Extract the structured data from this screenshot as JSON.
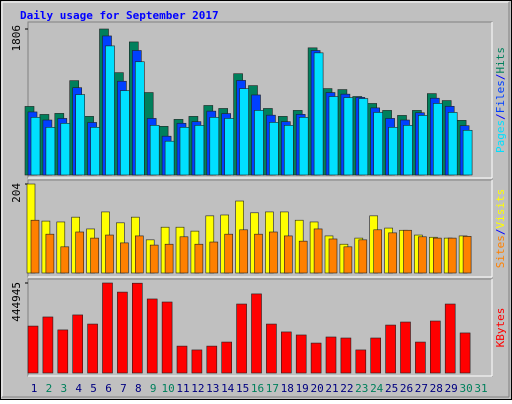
{
  "chart_data": {
    "type": "bar",
    "title": "Daily usage for September 2017",
    "categories": [
      "1",
      "2",
      "3",
      "4",
      "5",
      "6",
      "7",
      "8",
      "9",
      "10",
      "11",
      "12",
      "13",
      "14",
      "15",
      "16",
      "17",
      "18",
      "19",
      "20",
      "21",
      "22",
      "23",
      "24",
      "25",
      "26",
      "27",
      "28",
      "29",
      "30",
      "31"
    ],
    "weekend": [
      false,
      true,
      true,
      false,
      false,
      false,
      false,
      false,
      true,
      true,
      false,
      false,
      false,
      false,
      false,
      true,
      true,
      false,
      false,
      false,
      false,
      false,
      true,
      true,
      false,
      false,
      false,
      false,
      false,
      true,
      true
    ],
    "weekday_label_color": "#000080",
    "weekend_label_color": "#00805c",
    "legend_separator": "/",
    "panels": [
      {
        "ylim": [
          0,
          1806
        ],
        "yticks": [
          1806
        ],
        "series": [
          {
            "name": "Hits",
            "color": "#00805c",
            "values": [
              848,
              749,
              762,
              1167,
              725,
              1806,
              1266,
              1646,
              1020,
              602,
              688,
              725,
              860,
              823,
              1253,
              1106,
              823,
              725,
              799,
              1573,
              1069,
              1057,
              971,
              885,
              799,
              737,
              799,
              1007,
              921,
              676,
              null
            ]
          },
          {
            "name": "Files",
            "color": "#0040ff",
            "values": [
              780,
              680,
              700,
              1080,
              650,
              1720,
              1160,
              1540,
              700,
              480,
              640,
              660,
              790,
              760,
              1170,
              990,
              740,
              660,
              750,
              1540,
              1020,
              1000,
              960,
              830,
              700,
              680,
              770,
              950,
              850,
              610,
              null
            ]
          },
          {
            "name": "Pages",
            "color": "#00e0ff",
            "values": [
              713,
              590,
              639,
              995,
              590,
              1597,
              1044,
              1401,
              614,
              418,
              590,
              614,
              713,
              700,
              1069,
              799,
              651,
              614,
              713,
              1511,
              971,
              958,
              946,
              774,
              590,
              614,
              737,
              885,
              774,
              553,
              null
            ]
          }
        ]
      },
      {
        "ylim": [
          0,
          204
        ],
        "yticks": [
          204
        ],
        "series": [
          {
            "name": "Visits",
            "color": "#ffff00",
            "values": [
              204,
              119,
              117,
              128,
              101,
              140,
              115,
              128,
              76,
              105,
              105,
              96,
              131,
              133,
              165,
              138,
              140,
              140,
              121,
              117,
              85,
              66,
              80,
              131,
              103,
              98,
              87,
              82,
              80,
              85,
              null
            ]
          },
          {
            "name": "Sites",
            "color": "#ff8000",
            "values": [
              121,
              89,
              60,
              94,
              80,
              87,
              69,
              85,
              64,
              66,
              83,
              66,
              71,
              89,
              99,
              89,
              94,
              85,
              73,
              101,
              78,
              60,
              76,
              99,
              92,
              98,
              83,
              80,
              80,
              84,
              null
            ]
          }
        ]
      },
      {
        "ylim": [
          0,
          444945
        ],
        "yticks": [
          444945
        ],
        "series": [
          {
            "name": "KBytes",
            "color": "#ff0000",
            "values": [
              232000,
              277000,
              213000,
              287000,
              242000,
              444945,
              400000,
              444000,
              366000,
              351000,
              133000,
              114000,
              133000,
              153000,
              341000,
              391000,
              242000,
              203000,
              188000,
              148000,
              178000,
              173000,
              114000,
              173000,
              237000,
              252000,
              153000,
              257000,
              341000,
              198000,
              null
            ]
          }
        ]
      }
    ]
  }
}
